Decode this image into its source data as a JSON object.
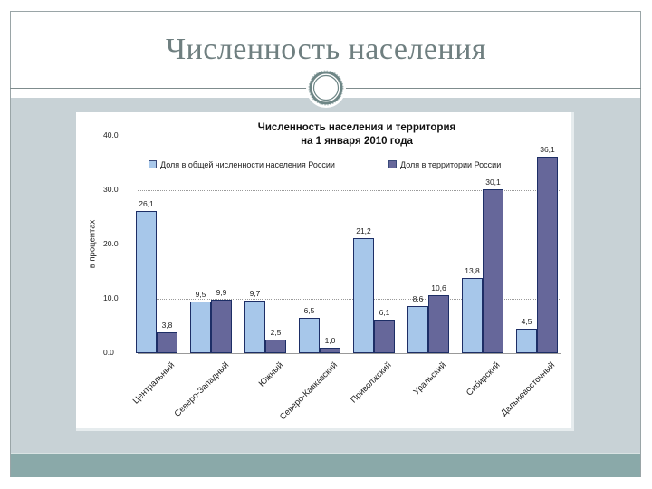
{
  "slide": {
    "title": "Численность населения"
  },
  "colors": {
    "population": "#a7c7ea",
    "territory": "#66679a",
    "band": "#c8d2d6",
    "band_dark": "#8aa9a9",
    "title": "#6f7f80"
  },
  "chart_data": {
    "type": "bar",
    "title": "Численность населения и территория на 1 января 2010 года",
    "title_lines": [
      "Численность населения и территория",
      "на 1 января 2010 года"
    ],
    "xlabel": "",
    "ylabel": "в процентах",
    "ylim": [
      0,
      40
    ],
    "yticks": [
      "0.0",
      "10.0",
      "20.0",
      "30.0",
      "40.0"
    ],
    "grid": true,
    "legend_position": "top",
    "categories": [
      "Центральный",
      "Северо-Западный",
      "Южный",
      "Северо-Кавказский",
      "Приволжский",
      "Уральский",
      "Сибирский",
      "Дальневосточный"
    ],
    "series": [
      {
        "name": "Доля в общей численности населения России",
        "values": [
          26.1,
          9.5,
          9.7,
          6.5,
          21.2,
          8.6,
          13.8,
          4.5
        ],
        "labels": [
          "26,1",
          "9,5",
          "9,7",
          "6,5",
          "21,2",
          "8,6",
          "13,8",
          "4,5"
        ]
      },
      {
        "name": "Доля в территории России",
        "values": [
          3.8,
          9.9,
          2.5,
          1.0,
          6.1,
          10.6,
          30.1,
          36.1
        ],
        "labels": [
          "3,8",
          "9,9",
          "2,5",
          "1,0",
          "6,1",
          "10,6",
          "30,1",
          "36,1"
        ]
      }
    ]
  }
}
